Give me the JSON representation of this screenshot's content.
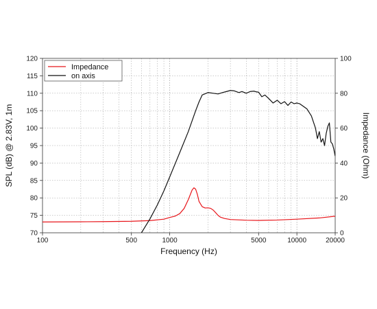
{
  "chart_data": {
    "type": "line",
    "xlabel": "Frequency (Hz)",
    "ylabel_left": "SPL (dB) @ 2.83V, 1m",
    "ylabel_right": "Impedance (Ohm)",
    "x_scale": "log",
    "xlim": [
      100,
      20000
    ],
    "ylim_left": [
      70,
      120
    ],
    "ylim_right": [
      0,
      100
    ],
    "x_ticks": [
      {
        "value": 100,
        "label": "100"
      },
      {
        "value": 500,
        "label": "500"
      },
      {
        "value": 1000,
        "label": "1000"
      },
      {
        "value": 5000,
        "label": "5000"
      },
      {
        "value": 10000,
        "label": "10000"
      },
      {
        "value": 20000,
        "label": "20000"
      }
    ],
    "y_ticks_left": [
      "70",
      "75",
      "80",
      "85",
      "90",
      "95",
      "100",
      "105",
      "110",
      "115",
      "120"
    ],
    "y_ticks_right": [
      "0",
      "20",
      "40",
      "60",
      "80",
      "100"
    ],
    "grid": true,
    "legend_position": "top-left",
    "series": [
      {
        "name": "Impedance",
        "color": "#e8161b",
        "axis": "right",
        "x": [
          100,
          200,
          300,
          500,
          700,
          900,
          1000,
          1100,
          1200,
          1300,
          1400,
          1500,
          1550,
          1600,
          1650,
          1700,
          1800,
          1900,
          2000,
          2100,
          2200,
          2300,
          2400,
          2500,
          2700,
          3000,
          4000,
          5000,
          7000,
          10000,
          15000,
          20000
        ],
        "y": [
          6.2,
          6.3,
          6.4,
          6.6,
          7.0,
          7.8,
          8.8,
          9.5,
          11.0,
          14.0,
          19.0,
          24.5,
          25.8,
          25.0,
          22.0,
          18.0,
          15.0,
          14.2,
          14.3,
          14.0,
          13.0,
          11.5,
          10.0,
          9.0,
          8.2,
          7.6,
          7.2,
          7.1,
          7.3,
          7.8,
          8.5,
          9.5
        ]
      },
      {
        "name": "on axis",
        "color": "#111111",
        "axis": "left",
        "x": [
          600,
          700,
          800,
          900,
          1000,
          1200,
          1400,
          1600,
          1700,
          1800,
          2000,
          2200,
          2400,
          2600,
          2800,
          3000,
          3200,
          3500,
          3700,
          4000,
          4300,
          4600,
          4800,
          5000,
          5300,
          5600,
          6000,
          6500,
          7000,
          7500,
          8000,
          8500,
          9000,
          9500,
          10000,
          10500,
          11000,
          12000,
          13000,
          14000,
          14500,
          15000,
          15500,
          16000,
          16500,
          17000,
          17500,
          18000,
          18500,
          19000,
          19500,
          20000
        ],
        "y": [
          70.0,
          74.0,
          78.0,
          82.0,
          86.0,
          93.0,
          99.0,
          105.0,
          107.5,
          109.5,
          110.2,
          110.0,
          109.8,
          110.2,
          110.5,
          110.8,
          110.7,
          110.2,
          110.5,
          110.0,
          110.5,
          110.6,
          110.4,
          110.3,
          109.0,
          109.5,
          108.5,
          107.2,
          108.0,
          107.0,
          107.6,
          106.5,
          107.5,
          107.0,
          107.2,
          107.0,
          106.5,
          105.5,
          103.5,
          100.0,
          97.0,
          99.0,
          96.0,
          97.0,
          95.0,
          98.5,
          100.5,
          101.5,
          96.0,
          95.5,
          94.0,
          92.0
        ]
      }
    ]
  }
}
